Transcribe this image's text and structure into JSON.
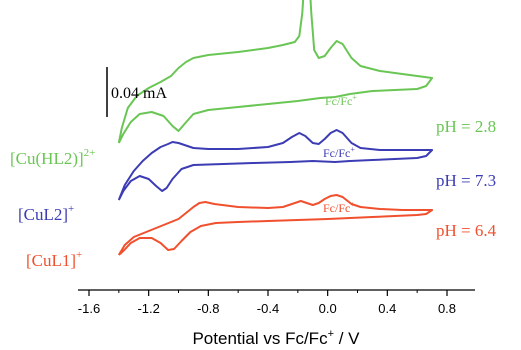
{
  "chart_data": {
    "type": "line",
    "title": "",
    "xlabel": "Potential vs Fc/Fc⁺ / V",
    "xlabel_main": "Potential vs Fc/Fc",
    "xlabel_sup": "+",
    "xlabel_tail": " / V",
    "xlim": [
      -1.6,
      0.9
    ],
    "x_ticks": [
      "-1.6",
      "-1.2",
      "-0.8",
      "-0.4",
      "0.0",
      "0.4",
      "0.8"
    ],
    "x_tick_values": [
      -1.6,
      -1.2,
      -0.8,
      -0.4,
      0.0,
      0.4,
      0.8
    ],
    "y_axis_visible": false,
    "scale_bar": {
      "label": "0.04 mA",
      "value_mA": 0.04
    },
    "grid": false,
    "legend": "labels beside curves",
    "series": [
      {
        "name": "[Cu(HL2)]",
        "name_sup": "2+",
        "ph_label": "pH = 2.8",
        "peak_label": "Fc/Fc",
        "peak_sup": "+",
        "color": "#6ac654",
        "offset_mA": 0.135,
        "forward": [
          [
            -1.4,
            -0.045
          ],
          [
            -1.38,
            -0.03
          ],
          [
            -1.34,
            -0.01
          ],
          [
            -1.28,
            0.002
          ],
          [
            -1.2,
            0.01
          ],
          [
            -1.12,
            0.016
          ],
          [
            -1.05,
            0.022
          ],
          [
            -1.0,
            0.03
          ],
          [
            -0.95,
            0.036
          ],
          [
            -0.9,
            0.04
          ],
          [
            -0.8,
            0.043
          ],
          [
            -0.6,
            0.046
          ],
          [
            -0.4,
            0.05
          ],
          [
            -0.3,
            0.053
          ],
          [
            -0.22,
            0.056
          ],
          [
            -0.19,
            0.062
          ],
          [
            -0.17,
            0.085
          ],
          [
            -0.15,
            0.132
          ],
          [
            -0.14,
            0.15
          ],
          [
            -0.13,
            0.138
          ],
          [
            -0.11,
            0.085
          ],
          [
            -0.09,
            0.048
          ],
          [
            -0.06,
            0.04
          ],
          [
            -0.02,
            0.042
          ],
          [
            0.02,
            0.05
          ],
          [
            0.06,
            0.057
          ],
          [
            0.1,
            0.054
          ],
          [
            0.16,
            0.04
          ],
          [
            0.22,
            0.032
          ],
          [
            0.35,
            0.027
          ],
          [
            0.5,
            0.024
          ],
          [
            0.6,
            0.022
          ],
          [
            0.7,
            0.02
          ]
        ],
        "reverse": [
          [
            0.7,
            0.02
          ],
          [
            0.66,
            0.012
          ],
          [
            0.6,
            0.009
          ],
          [
            0.45,
            0.008
          ],
          [
            0.3,
            0.007
          ],
          [
            0.15,
            0.004
          ],
          [
            0.05,
            0.001
          ],
          [
            -0.05,
            0.0
          ],
          [
            -0.2,
            -0.003
          ],
          [
            -0.4,
            -0.006
          ],
          [
            -0.6,
            -0.009
          ],
          [
            -0.8,
            -0.012
          ],
          [
            -0.9,
            -0.016
          ],
          [
            -0.96,
            -0.026
          ],
          [
            -1.0,
            -0.033
          ],
          [
            -1.04,
            -0.028
          ],
          [
            -1.1,
            -0.018
          ],
          [
            -1.18,
            -0.014
          ],
          [
            -1.26,
            -0.016
          ],
          [
            -1.32,
            -0.024
          ],
          [
            -1.37,
            -0.036
          ],
          [
            -1.4,
            -0.045
          ]
        ]
      },
      {
        "name": "[CuL2]",
        "name_sup": "+",
        "ph_label": "pH = 7.3",
        "peak_label": "Fc/Fc",
        "peak_sup": "+",
        "color": "#3c3cb4",
        "offset_mA": 0.06,
        "forward": [
          [
            -1.4,
            -0.027
          ],
          [
            -1.36,
            -0.012
          ],
          [
            -1.3,
            0.002
          ],
          [
            -1.24,
            0.012
          ],
          [
            -1.18,
            0.02
          ],
          [
            -1.12,
            0.026
          ],
          [
            -1.07,
            0.029
          ],
          [
            -1.04,
            0.031
          ],
          [
            -1.0,
            0.03
          ],
          [
            -0.9,
            0.025
          ],
          [
            -0.8,
            0.024
          ],
          [
            -0.6,
            0.024
          ],
          [
            -0.4,
            0.026
          ],
          [
            -0.3,
            0.03
          ],
          [
            -0.24,
            0.036
          ],
          [
            -0.19,
            0.04
          ],
          [
            -0.15,
            0.037
          ],
          [
            -0.1,
            0.03
          ],
          [
            -0.06,
            0.029
          ],
          [
            -0.02,
            0.034
          ],
          [
            0.02,
            0.04
          ],
          [
            0.06,
            0.043
          ],
          [
            0.1,
            0.04
          ],
          [
            0.16,
            0.03
          ],
          [
            0.22,
            0.025
          ],
          [
            0.35,
            0.023
          ],
          [
            0.5,
            0.023
          ],
          [
            0.6,
            0.023
          ],
          [
            0.7,
            0.023
          ]
        ],
        "reverse": [
          [
            0.7,
            0.023
          ],
          [
            0.66,
            0.017
          ],
          [
            0.6,
            0.015
          ],
          [
            0.45,
            0.014
          ],
          [
            0.3,
            0.013
          ],
          [
            0.15,
            0.012
          ],
          [
            0.05,
            0.011
          ],
          [
            -0.1,
            0.012
          ],
          [
            -0.25,
            0.011
          ],
          [
            -0.5,
            0.01
          ],
          [
            -0.7,
            0.009
          ],
          [
            -0.9,
            0.008
          ],
          [
            -0.98,
            0.004
          ],
          [
            -1.04,
            -0.006
          ],
          [
            -1.08,
            -0.015
          ],
          [
            -1.11,
            -0.018
          ],
          [
            -1.15,
            -0.013
          ],
          [
            -1.2,
            -0.006
          ],
          [
            -1.26,
            -0.003
          ],
          [
            -1.32,
            -0.008
          ],
          [
            -1.37,
            -0.018
          ],
          [
            -1.4,
            -0.027
          ]
        ]
      },
      {
        "name": "[CuL1]",
        "name_sup": "+",
        "ph_label": "pH = 6.4",
        "peak_label": "Fc/Fc",
        "peak_sup": "+",
        "color": "#f0502d",
        "offset_mA": 0.0,
        "forward": [
          [
            -1.4,
            -0.022
          ],
          [
            -1.36,
            -0.012
          ],
          [
            -1.3,
            -0.004
          ],
          [
            -1.2,
            0.002
          ],
          [
            -1.1,
            0.008
          ],
          [
            -1.0,
            0.014
          ],
          [
            -0.95,
            0.02
          ],
          [
            -0.9,
            0.026
          ],
          [
            -0.86,
            0.03
          ],
          [
            -0.82,
            0.031
          ],
          [
            -0.76,
            0.029
          ],
          [
            -0.6,
            0.026
          ],
          [
            -0.4,
            0.025
          ],
          [
            -0.3,
            0.026
          ],
          [
            -0.24,
            0.029
          ],
          [
            -0.18,
            0.032
          ],
          [
            -0.14,
            0.03
          ],
          [
            -0.1,
            0.028
          ],
          [
            -0.06,
            0.03
          ],
          [
            -0.02,
            0.034
          ],
          [
            0.02,
            0.037
          ],
          [
            0.06,
            0.038
          ],
          [
            0.1,
            0.036
          ],
          [
            0.16,
            0.029
          ],
          [
            0.22,
            0.026
          ],
          [
            0.35,
            0.024
          ],
          [
            0.5,
            0.023
          ],
          [
            0.6,
            0.023
          ],
          [
            0.7,
            0.023
          ]
        ],
        "reverse": [
          [
            0.7,
            0.023
          ],
          [
            0.66,
            0.019
          ],
          [
            0.6,
            0.018
          ],
          [
            0.45,
            0.017
          ],
          [
            0.3,
            0.016
          ],
          [
            0.15,
            0.015
          ],
          [
            0.0,
            0.014
          ],
          [
            -0.2,
            0.013
          ],
          [
            -0.4,
            0.012
          ],
          [
            -0.6,
            0.011
          ],
          [
            -0.75,
            0.01
          ],
          [
            -0.85,
            0.007
          ],
          [
            -0.92,
            0.001
          ],
          [
            -0.98,
            -0.008
          ],
          [
            -1.03,
            -0.016
          ],
          [
            -1.07,
            -0.017
          ],
          [
            -1.12,
            -0.01
          ],
          [
            -1.18,
            -0.005
          ],
          [
            -1.26,
            -0.005
          ],
          [
            -1.32,
            -0.01
          ],
          [
            -1.37,
            -0.018
          ],
          [
            -1.4,
            -0.022
          ]
        ]
      }
    ]
  }
}
